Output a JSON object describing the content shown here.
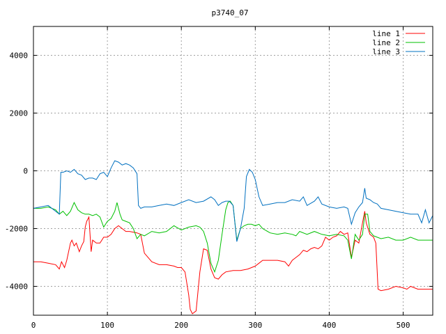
{
  "chart_data": {
    "type": "line",
    "title": "p3740_07",
    "xlabel": "",
    "ylabel": "",
    "xlim": [
      0,
      540
    ],
    "ylim": [
      -5000,
      5000
    ],
    "xticks": [
      0,
      100,
      200,
      300,
      400,
      500
    ],
    "yticks": [
      -4000,
      -2000,
      0,
      2000,
      4000
    ],
    "grid": true,
    "legend_position": "top-right",
    "series": [
      {
        "name": "line 1",
        "color": "#ff0000",
        "points": [
          [
            0,
            -3150
          ],
          [
            10,
            -3150
          ],
          [
            20,
            -3200
          ],
          [
            30,
            -3250
          ],
          [
            35,
            -3400
          ],
          [
            38,
            -3150
          ],
          [
            42,
            -3350
          ],
          [
            45,
            -3100
          ],
          [
            50,
            -2500
          ],
          [
            52,
            -2400
          ],
          [
            55,
            -2600
          ],
          [
            58,
            -2500
          ],
          [
            62,
            -2800
          ],
          [
            65,
            -2600
          ],
          [
            68,
            -2450
          ],
          [
            70,
            -1950
          ],
          [
            72,
            -1750
          ],
          [
            75,
            -1600
          ],
          [
            78,
            -2800
          ],
          [
            80,
            -2400
          ],
          [
            85,
            -2500
          ],
          [
            90,
            -2500
          ],
          [
            95,
            -2300
          ],
          [
            100,
            -2300
          ],
          [
            105,
            -2200
          ],
          [
            110,
            -2000
          ],
          [
            115,
            -1900
          ],
          [
            120,
            -2000
          ],
          [
            125,
            -2100
          ],
          [
            130,
            -2100
          ],
          [
            140,
            -2150
          ],
          [
            145,
            -2200
          ],
          [
            150,
            -2850
          ],
          [
            160,
            -3150
          ],
          [
            170,
            -3250
          ],
          [
            180,
            -3250
          ],
          [
            190,
            -3300
          ],
          [
            195,
            -3350
          ],
          [
            200,
            -3350
          ],
          [
            205,
            -3500
          ],
          [
            210,
            -4300
          ],
          [
            212,
            -4800
          ],
          [
            215,
            -4950
          ],
          [
            220,
            -4850
          ],
          [
            225,
            -3500
          ],
          [
            230,
            -2700
          ],
          [
            235,
            -2750
          ],
          [
            240,
            -3400
          ],
          [
            245,
            -3700
          ],
          [
            250,
            -3750
          ],
          [
            255,
            -3600
          ],
          [
            260,
            -3500
          ],
          [
            270,
            -3450
          ],
          [
            280,
            -3450
          ],
          [
            290,
            -3400
          ],
          [
            295,
            -3350
          ],
          [
            300,
            -3300
          ],
          [
            305,
            -3200
          ],
          [
            310,
            -3100
          ],
          [
            320,
            -3100
          ],
          [
            330,
            -3100
          ],
          [
            340,
            -3150
          ],
          [
            345,
            -3300
          ],
          [
            350,
            -3100
          ],
          [
            355,
            -3000
          ],
          [
            360,
            -2900
          ],
          [
            365,
            -2750
          ],
          [
            370,
            -2800
          ],
          [
            375,
            -2700
          ],
          [
            380,
            -2650
          ],
          [
            385,
            -2700
          ],
          [
            390,
            -2600
          ],
          [
            395,
            -2300
          ],
          [
            400,
            -2400
          ],
          [
            405,
            -2300
          ],
          [
            410,
            -2250
          ],
          [
            415,
            -2100
          ],
          [
            420,
            -2200
          ],
          [
            425,
            -2150
          ],
          [
            430,
            -3000
          ],
          [
            435,
            -2400
          ],
          [
            440,
            -2500
          ],
          [
            445,
            -1800
          ],
          [
            448,
            -1400
          ],
          [
            450,
            -1800
          ],
          [
            455,
            -2200
          ],
          [
            460,
            -2300
          ],
          [
            463,
            -2500
          ],
          [
            466,
            -4100
          ],
          [
            470,
            -4150
          ],
          [
            480,
            -4100
          ],
          [
            490,
            -4000
          ],
          [
            500,
            -4050
          ],
          [
            505,
            -4100
          ],
          [
            510,
            -4000
          ],
          [
            520,
            -4100
          ],
          [
            530,
            -4100
          ],
          [
            540,
            -4100
          ]
        ]
      },
      {
        "name": "line 2",
        "color": "#00c000",
        "points": [
          [
            0,
            -1300
          ],
          [
            10,
            -1300
          ],
          [
            20,
            -1250
          ],
          [
            30,
            -1350
          ],
          [
            35,
            -1500
          ],
          [
            40,
            -1400
          ],
          [
            45,
            -1550
          ],
          [
            50,
            -1400
          ],
          [
            55,
            -1100
          ],
          [
            60,
            -1350
          ],
          [
            65,
            -1450
          ],
          [
            70,
            -1500
          ],
          [
            75,
            -1500
          ],
          [
            80,
            -1550
          ],
          [
            85,
            -1500
          ],
          [
            90,
            -1600
          ],
          [
            95,
            -1950
          ],
          [
            100,
            -1750
          ],
          [
            105,
            -1650
          ],
          [
            110,
            -1400
          ],
          [
            113,
            -1100
          ],
          [
            117,
            -1500
          ],
          [
            120,
            -1700
          ],
          [
            125,
            -1750
          ],
          [
            130,
            -1800
          ],
          [
            135,
            -2000
          ],
          [
            140,
            -2350
          ],
          [
            145,
            -2200
          ],
          [
            150,
            -2250
          ],
          [
            160,
            -2100
          ],
          [
            170,
            -2150
          ],
          [
            180,
            -2100
          ],
          [
            190,
            -1900
          ],
          [
            200,
            -2050
          ],
          [
            210,
            -1950
          ],
          [
            220,
            -1900
          ],
          [
            225,
            -1950
          ],
          [
            230,
            -2100
          ],
          [
            235,
            -2500
          ],
          [
            240,
            -3200
          ],
          [
            245,
            -3500
          ],
          [
            250,
            -3100
          ],
          [
            255,
            -2200
          ],
          [
            260,
            -1350
          ],
          [
            263,
            -1100
          ],
          [
            266,
            -1050
          ],
          [
            270,
            -1200
          ],
          [
            275,
            -2400
          ],
          [
            280,
            -2000
          ],
          [
            285,
            -1900
          ],
          [
            290,
            -1850
          ],
          [
            295,
            -1850
          ],
          [
            300,
            -1900
          ],
          [
            305,
            -1850
          ],
          [
            310,
            -2000
          ],
          [
            320,
            -2150
          ],
          [
            330,
            -2200
          ],
          [
            340,
            -2150
          ],
          [
            350,
            -2200
          ],
          [
            355,
            -2250
          ],
          [
            360,
            -2100
          ],
          [
            370,
            -2200
          ],
          [
            380,
            -2100
          ],
          [
            390,
            -2200
          ],
          [
            400,
            -2250
          ],
          [
            410,
            -2200
          ],
          [
            420,
            -2250
          ],
          [
            425,
            -2400
          ],
          [
            430,
            -3050
          ],
          [
            435,
            -2200
          ],
          [
            440,
            -2400
          ],
          [
            445,
            -2200
          ],
          [
            448,
            -1500
          ],
          [
            452,
            -1500
          ],
          [
            455,
            -2100
          ],
          [
            460,
            -2250
          ],
          [
            470,
            -2350
          ],
          [
            480,
            -2300
          ],
          [
            490,
            -2400
          ],
          [
            500,
            -2400
          ],
          [
            510,
            -2300
          ],
          [
            520,
            -2400
          ],
          [
            530,
            -2400
          ],
          [
            540,
            -2400
          ]
        ]
      },
      {
        "name": "line 3",
        "color": "#0070c0",
        "points": [
          [
            0,
            -1300
          ],
          [
            10,
            -1250
          ],
          [
            20,
            -1200
          ],
          [
            30,
            -1400
          ],
          [
            35,
            -1500
          ],
          [
            37,
            -50
          ],
          [
            40,
            -50
          ],
          [
            45,
            0
          ],
          [
            50,
            -50
          ],
          [
            55,
            50
          ],
          [
            60,
            -100
          ],
          [
            65,
            -150
          ],
          [
            70,
            -300
          ],
          [
            75,
            -250
          ],
          [
            80,
            -250
          ],
          [
            85,
            -300
          ],
          [
            90,
            -100
          ],
          [
            95,
            -50
          ],
          [
            100,
            -200
          ],
          [
            105,
            100
          ],
          [
            110,
            350
          ],
          [
            115,
            300
          ],
          [
            120,
            200
          ],
          [
            125,
            250
          ],
          [
            130,
            200
          ],
          [
            135,
            100
          ],
          [
            140,
            -100
          ],
          [
            142,
            -1200
          ],
          [
            145,
            -1300
          ],
          [
            150,
            -1250
          ],
          [
            160,
            -1250
          ],
          [
            170,
            -1200
          ],
          [
            180,
            -1150
          ],
          [
            190,
            -1200
          ],
          [
            200,
            -1100
          ],
          [
            210,
            -1000
          ],
          [
            220,
            -1100
          ],
          [
            230,
            -1050
          ],
          [
            240,
            -900
          ],
          [
            245,
            -1000
          ],
          [
            250,
            -1200
          ],
          [
            255,
            -1100
          ],
          [
            260,
            -1050
          ],
          [
            265,
            -1050
          ],
          [
            270,
            -1200
          ],
          [
            275,
            -2450
          ],
          [
            280,
            -2000
          ],
          [
            285,
            -1300
          ],
          [
            288,
            -200
          ],
          [
            292,
            50
          ],
          [
            296,
            -50
          ],
          [
            300,
            -300
          ],
          [
            305,
            -900
          ],
          [
            310,
            -1200
          ],
          [
            320,
            -1150
          ],
          [
            330,
            -1100
          ],
          [
            340,
            -1100
          ],
          [
            350,
            -1000
          ],
          [
            360,
            -1050
          ],
          [
            365,
            -900
          ],
          [
            370,
            -1200
          ],
          [
            380,
            -1050
          ],
          [
            385,
            -900
          ],
          [
            390,
            -1150
          ],
          [
            400,
            -1250
          ],
          [
            410,
            -1300
          ],
          [
            420,
            -1250
          ],
          [
            425,
            -1300
          ],
          [
            430,
            -1850
          ],
          [
            435,
            -1450
          ],
          [
            440,
            -1250
          ],
          [
            445,
            -1100
          ],
          [
            448,
            -600
          ],
          [
            450,
            -950
          ],
          [
            455,
            -1000
          ],
          [
            460,
            -1100
          ],
          [
            465,
            -1150
          ],
          [
            470,
            -1300
          ],
          [
            480,
            -1350
          ],
          [
            490,
            -1400
          ],
          [
            500,
            -1450
          ],
          [
            510,
            -1500
          ],
          [
            520,
            -1500
          ],
          [
            525,
            -1800
          ],
          [
            530,
            -1350
          ],
          [
            535,
            -1800
          ],
          [
            540,
            -1550
          ]
        ]
      }
    ]
  }
}
